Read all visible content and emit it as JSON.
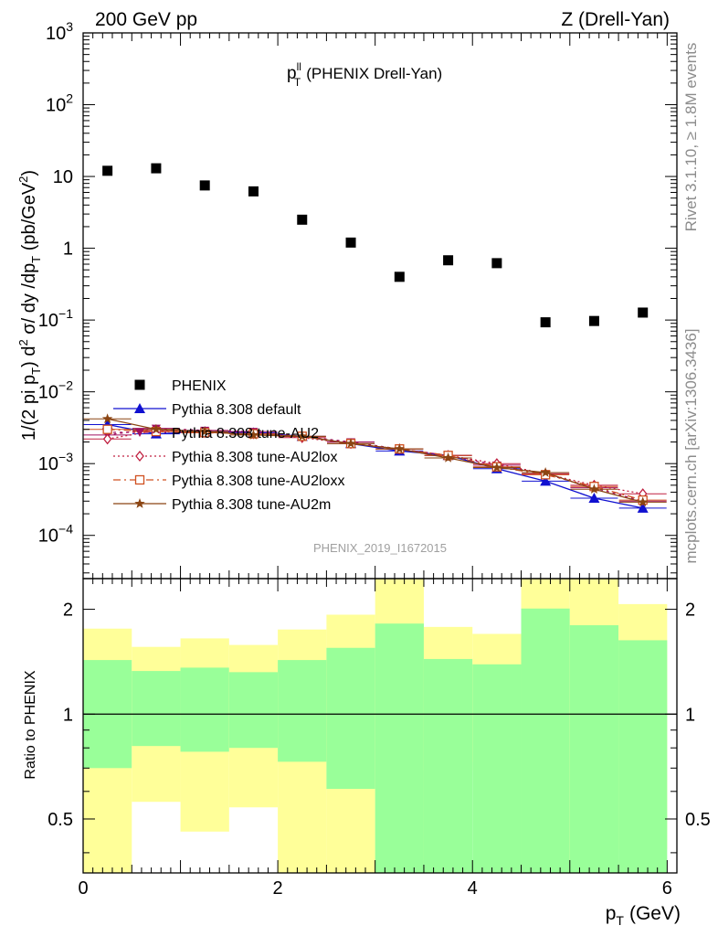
{
  "header": {
    "left": "200 GeV pp",
    "right": "Z (Drell-Yan)"
  },
  "side_labels": {
    "rivet": "Rivet 3.1.10, ≥ 1.8M events",
    "mcplots": "mcplots.cern.ch [arXiv:1306.3436]"
  },
  "chart_data": {
    "type": "scatter",
    "title": {
      "base": "p",
      "sup": "ll",
      "sub": "T",
      "rest": "(PHENIX Drell-Yan)"
    },
    "analysis_id": "PHENIX_2019_I1672015",
    "x_axis": {
      "label_base": "p",
      "label_sub": "T",
      "label_rest": "(GeV)",
      "range": [
        0,
        6.1
      ],
      "major_ticks": [
        0,
        2,
        4,
        6
      ],
      "tick_labels": [
        "0",
        "2",
        "4",
        "6"
      ]
    },
    "y_axis": {
      "label": "1/(2 pi p_T) d^2 σ/ dy /dp_T (pb/GeV^2)",
      "scale": "log",
      "range": [
        2.5e-05,
        1000
      ],
      "tick_labels": [
        {
          "v": 1000,
          "base": "10",
          "exp": "3"
        },
        {
          "v": 100,
          "base": "10",
          "exp": "2"
        },
        {
          "v": 10,
          "base": "10",
          "exp": ""
        },
        {
          "v": 1,
          "base": "1",
          "exp": ""
        },
        {
          "v": 0.1,
          "base": "10",
          "exp": "−1"
        },
        {
          "v": 0.01,
          "base": "10",
          "exp": "−2"
        },
        {
          "v": 0.001,
          "base": "10",
          "exp": "−3"
        },
        {
          "v": 0.0001,
          "base": "10",
          "exp": "−4"
        }
      ]
    },
    "data": {
      "name": "PHENIX",
      "color": "#000000",
      "x": [
        0.25,
        0.75,
        1.25,
        1.75,
        2.25,
        2.75,
        3.25,
        3.75,
        4.25,
        4.75,
        5.25,
        5.75
      ],
      "y": [
        12,
        13,
        7.5,
        6.2,
        2.5,
        1.2,
        0.4,
        0.68,
        0.62,
        0.093,
        0.097,
        0.127
      ]
    },
    "series": [
      {
        "name": "Pythia 8.308 default",
        "color": "#1010d0",
        "dash": "",
        "marker": "triangle",
        "x": [
          0.25,
          0.75,
          1.25,
          1.75,
          2.25,
          2.75,
          3.25,
          3.75,
          4.25,
          4.75,
          5.25,
          5.75
        ],
        "y": [
          0.0035,
          0.0026,
          0.0028,
          0.0027,
          0.0024,
          0.0019,
          0.0015,
          0.0013,
          0.00085,
          0.00057,
          0.00033,
          0.00024
        ]
      },
      {
        "name": "Pythia 8.308 tune-AU2",
        "color": "#a01060",
        "dash": "3,4",
        "marker": "tri-down",
        "x": [
          0.25,
          0.75,
          1.25,
          1.75,
          2.25,
          2.75,
          3.25,
          3.75,
          4.25,
          4.75,
          5.25,
          5.75
        ],
        "y": [
          0.0025,
          0.0031,
          0.0029,
          0.0028,
          0.0024,
          0.002,
          0.0016,
          0.0013,
          0.00095,
          0.00072,
          0.00046,
          0.0003
        ]
      },
      {
        "name": "Pythia 8.308 tune-AU2lox",
        "color": "#c02040",
        "dash": "2,3",
        "marker": "diamond",
        "x": [
          0.25,
          0.75,
          1.25,
          1.75,
          2.25,
          2.75,
          3.25,
          3.75,
          4.25,
          4.75,
          5.25,
          5.75
        ],
        "y": [
          0.0022,
          0.0029,
          0.0027,
          0.0026,
          0.0023,
          0.0019,
          0.0016,
          0.0013,
          0.001,
          0.00072,
          0.0005,
          0.00038
        ]
      },
      {
        "name": "Pythia 8.308 tune-AU2loxx",
        "color": "#d05020",
        "dash": "8,4,2,4",
        "marker": "square",
        "x": [
          0.25,
          0.75,
          1.25,
          1.75,
          2.25,
          2.75,
          3.25,
          3.75,
          4.25,
          4.75,
          5.25,
          5.75
        ],
        "y": [
          0.003,
          0.0028,
          0.0027,
          0.0026,
          0.0024,
          0.0019,
          0.0016,
          0.0013,
          0.0009,
          0.0007,
          0.00048,
          0.00031
        ]
      },
      {
        "name": "Pythia 8.308 tune-AU2m",
        "color": "#8b4513",
        "dash": "",
        "marker": "star",
        "x": [
          0.25,
          0.75,
          1.25,
          1.75,
          2.25,
          2.75,
          3.25,
          3.75,
          4.25,
          4.75,
          5.25,
          5.75
        ],
        "y": [
          0.0042,
          0.003,
          0.0028,
          0.0025,
          0.0024,
          0.0019,
          0.0016,
          0.0012,
          0.00088,
          0.00075,
          0.00044,
          0.00029
        ]
      }
    ],
    "ratio": {
      "ylabel": "Ratio to PHENIX",
      "scale": "log",
      "range": [
        0.35,
        2.45
      ],
      "tick_values": [
        0.5,
        1,
        2
      ],
      "tick_labels": [
        "0.5",
        "1",
        "2"
      ],
      "reference": 1,
      "bin_edges": [
        0,
        0.5,
        1,
        1.5,
        2,
        2.5,
        3,
        3.5,
        4,
        4.5,
        5,
        5.5,
        6
      ],
      "stat_band": {
        "color": "#99ff99",
        "low": [
          0.7,
          0.81,
          0.78,
          0.8,
          0.73,
          0.61,
          0.35,
          0.35,
          0.35,
          0.35,
          0.35,
          0.35
        ],
        "high": [
          1.43,
          1.33,
          1.36,
          1.32,
          1.43,
          1.55,
          1.82,
          1.44,
          1.39,
          2.01,
          1.8,
          1.63
        ]
      },
      "total_band": {
        "color": "#ffff99",
        "low": [
          0.35,
          0.56,
          0.46,
          0.54,
          0.35,
          0.35,
          0.35,
          0.69,
          0.73,
          0.35,
          0.35,
          0.41
        ],
        "high": [
          1.76,
          1.56,
          1.65,
          1.58,
          1.75,
          1.93,
          2.45,
          1.78,
          1.7,
          2.45,
          2.45,
          2.07
        ]
      }
    }
  }
}
